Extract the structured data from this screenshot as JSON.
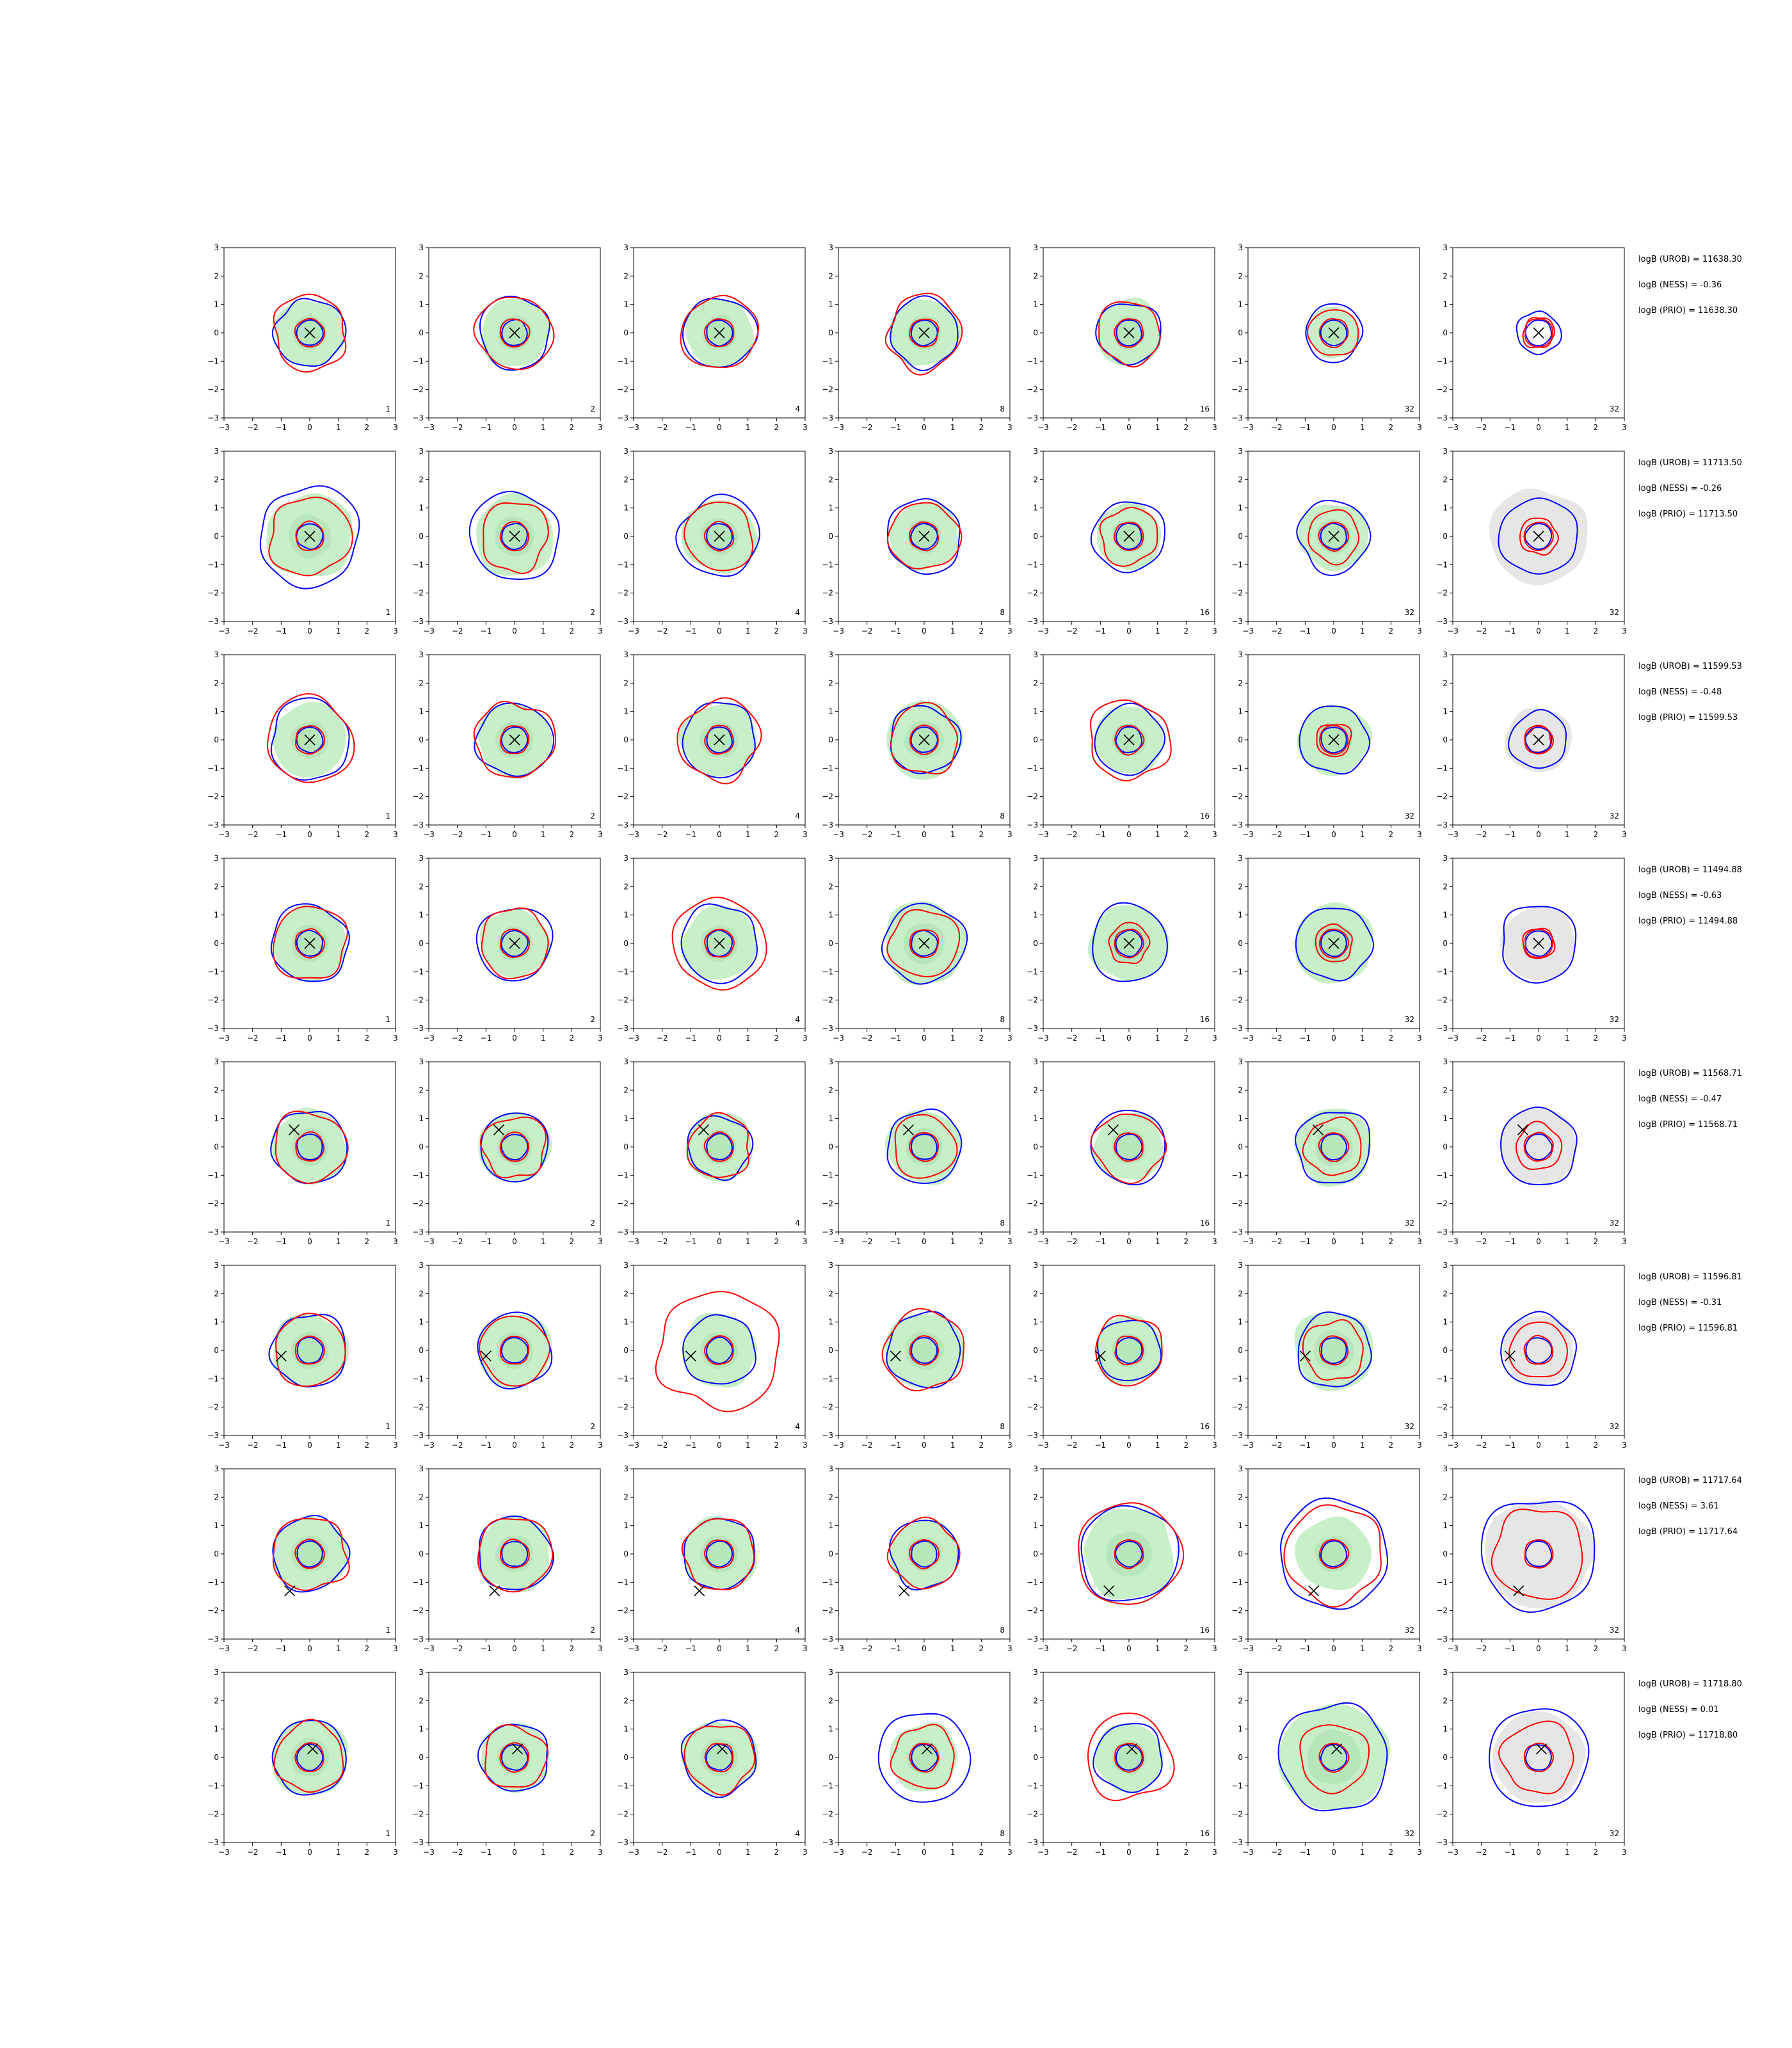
{
  "chart_data": {
    "type": "contour_grid",
    "xlim": [
      -3,
      3
    ],
    "ylim": [
      -3,
      3
    ],
    "xticks": [
      "−3",
      "−2",
      "−1",
      "0",
      "1",
      "2",
      "3"
    ],
    "yticks": [
      "−3",
      "−2",
      "−1",
      "0",
      "1",
      "2",
      "3"
    ],
    "columns": [
      "1",
      "2",
      "4",
      "8",
      "16",
      "32",
      "32"
    ],
    "colors": {
      "fill": "#c8f0c8",
      "prior_fill": "#e6e6e6",
      "red": "#ff0000",
      "blue": "#0000ff",
      "marker": "#000000"
    },
    "rows": [
      {
        "truth": [
          0,
          0
        ],
        "stats": [
          "logB (UROB) = 11638.30",
          "logB (NESS) = -0.36",
          "logB (PRIO) = 11638.30"
        ],
        "blue": [
          1.2,
          1.25,
          1.25,
          1.2,
          1.1,
          1.0,
          0.75
        ],
        "red": [
          1.3,
          1.3,
          1.3,
          1.3,
          1.1,
          0.85,
          0.55
        ],
        "fill": [
          1.2,
          1.2,
          1.2,
          1.2,
          1.15,
          0.9,
          0.0
        ],
        "prior": [
          0,
          0,
          0,
          0,
          0,
          0,
          0
        ]
      },
      {
        "truth": [
          0,
          0
        ],
        "stats": [
          "logB (UROB) = 11713.50",
          "logB (NESS) = -0.26",
          "logB (PRIO) = 11713.50"
        ],
        "blue": [
          1.75,
          1.55,
          1.4,
          1.3,
          1.25,
          1.25,
          1.35
        ],
        "red": [
          1.4,
          1.2,
          1.2,
          1.2,
          1.0,
          0.9,
          0.65
        ],
        "fill": [
          1.5,
          1.4,
          1.3,
          1.2,
          1.15,
          1.2,
          0.0
        ],
        "prior": [
          0,
          0,
          0,
          0,
          0,
          0,
          1.7
        ]
      },
      {
        "truth": [
          0,
          0
        ],
        "stats": [
          "logB (UROB) = 11599.53",
          "logB (NESS) = -0.48",
          "logB (PRIO) = 11599.53"
        ],
        "blue": [
          1.4,
          1.3,
          1.3,
          1.2,
          1.2,
          1.2,
          1.0
        ],
        "red": [
          1.5,
          1.35,
          1.4,
          1.2,
          1.4,
          0.6,
          0.45
        ],
        "fill": [
          1.3,
          1.3,
          1.3,
          1.35,
          1.2,
          1.25,
          0.0
        ],
        "prior": [
          0,
          0,
          0,
          0,
          0,
          0,
          1.15
        ]
      },
      {
        "truth": [
          0,
          0
        ],
        "stats": [
          "logB (UROB) = 11494.88",
          "logB (NESS) = -0.63",
          "logB (PRIO) = 11494.88"
        ],
        "blue": [
          1.35,
          1.3,
          1.35,
          1.4,
          1.35,
          1.3,
          1.35
        ],
        "red": [
          1.3,
          1.2,
          1.6,
          1.2,
          0.7,
          0.65,
          0.55
        ],
        "fill": [
          1.3,
          1.2,
          1.3,
          1.45,
          1.35,
          1.4,
          0.0
        ],
        "prior": [
          0,
          0,
          0,
          0,
          0,
          0,
          1.3
        ]
      },
      {
        "truth": [
          -0.55,
          0.6
        ],
        "stats": [
          "logB (UROB) = 11568.71",
          "logB (NESS) = -0.47",
          "logB (PRIO) = 11568.71"
        ],
        "blue": [
          1.3,
          1.2,
          1.1,
          1.3,
          1.3,
          1.3,
          1.35
        ],
        "red": [
          1.25,
          1.1,
          1.1,
          1.1,
          1.2,
          1.0,
          0.8
        ],
        "fill": [
          1.3,
          1.25,
          1.2,
          1.3,
          1.2,
          1.35,
          0.0
        ],
        "prior": [
          0,
          0,
          0,
          0,
          0,
          0,
          1.35
        ]
      },
      {
        "truth": [
          -1.0,
          -0.2
        ],
        "stats": [
          "logB (UROB) = 11596.81",
          "logB (NESS) = -0.31",
          "logB (PRIO) = 11596.81"
        ],
        "blue": [
          1.3,
          1.3,
          1.25,
          1.3,
          1.1,
          1.3,
          1.3
        ],
        "red": [
          1.25,
          1.2,
          2.1,
          1.4,
          1.2,
          1.05,
          1.0
        ],
        "fill": [
          1.3,
          1.3,
          1.3,
          1.35,
          1.2,
          1.4,
          0.0
        ],
        "prior": [
          0,
          0,
          0,
          0,
          0,
          0,
          1.25
        ]
      },
      {
        "truth": [
          -0.7,
          -1.3
        ],
        "stats": [
          "logB (UROB) = 11717.64",
          "logB (NESS) = 3.61",
          "logB (PRIO) = 11717.64"
        ],
        "blue": [
          1.3,
          1.3,
          1.25,
          1.2,
          1.7,
          1.9,
          2.0
        ],
        "red": [
          1.3,
          1.3,
          1.25,
          1.2,
          1.8,
          1.7,
          1.6
        ],
        "fill": [
          1.3,
          1.3,
          1.3,
          1.2,
          1.6,
          1.3,
          0.0
        ],
        "prior": [
          0,
          0,
          0,
          0,
          0,
          0,
          1.9
        ]
      },
      {
        "truth": [
          0.1,
          0.3
        ],
        "stats": [
          "logB (UROB) = 11718.80",
          "logB (NESS) = 0.01",
          "logB (PRIO) = 11718.80"
        ],
        "blue": [
          1.3,
          1.2,
          1.3,
          1.6,
          1.2,
          1.9,
          1.75
        ],
        "red": [
          1.2,
          1.1,
          1.2,
          1.1,
          1.5,
          1.2,
          1.25
        ],
        "fill": [
          1.35,
          1.2,
          1.3,
          1.2,
          1.2,
          1.9,
          0.0
        ],
        "prior": [
          0,
          0,
          0,
          0,
          0,
          0,
          1.6
        ]
      }
    ]
  }
}
